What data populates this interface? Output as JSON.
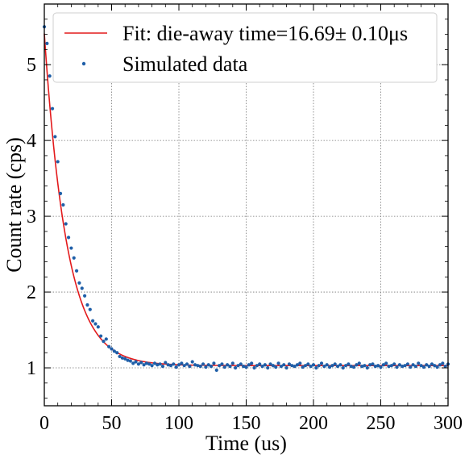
{
  "chart_data": {
    "type": "scatter",
    "xlabel": "Time (us)",
    "ylabel": "Count rate (cps)",
    "xlim": [
      0,
      300
    ],
    "ylim": [
      0.5,
      5.8
    ],
    "xticks": [
      0,
      50,
      100,
      150,
      200,
      250,
      300
    ],
    "yticks": [
      1,
      2,
      3,
      4,
      5
    ],
    "grid": true,
    "legend_position": "top-right",
    "legend": [
      "Fit: die-away time=16.69± 0.10μs",
      "Simulated data"
    ],
    "colors": {
      "fit": "#e31a1c",
      "data": "#1f5fa8"
    },
    "fit": {
      "amplitude": 4.38,
      "tau": 16.69,
      "offset": 1.03,
      "tau_uncertainty": 0.1
    },
    "series": [
      {
        "name": "Simulated data",
        "x": [
          0,
          2,
          4,
          6,
          8,
          10,
          12,
          14,
          16,
          18,
          20,
          22,
          24,
          26,
          28,
          30,
          32,
          34,
          36,
          38,
          40,
          42,
          44,
          46,
          48,
          50,
          52,
          54,
          56,
          58,
          60,
          62,
          64,
          66,
          68,
          70,
          72,
          74,
          76,
          78,
          80,
          82,
          84,
          86,
          88,
          90,
          92,
          94,
          96,
          98,
          100,
          102,
          104,
          106,
          108,
          110,
          112,
          114,
          116,
          118,
          120,
          122,
          124,
          126,
          128,
          130,
          132,
          134,
          136,
          138,
          140,
          142,
          144,
          146,
          148,
          150,
          152,
          154,
          156,
          158,
          160,
          162,
          164,
          166,
          168,
          170,
          172,
          174,
          176,
          178,
          180,
          182,
          184,
          186,
          188,
          190,
          192,
          194,
          196,
          198,
          200,
          202,
          204,
          206,
          208,
          210,
          212,
          214,
          216,
          218,
          220,
          222,
          224,
          226,
          228,
          230,
          232,
          234,
          236,
          238,
          240,
          242,
          244,
          246,
          248,
          250,
          252,
          254,
          256,
          258,
          260,
          262,
          264,
          266,
          268,
          270,
          272,
          274,
          276,
          278,
          280,
          282,
          284,
          286,
          288,
          290,
          292,
          294,
          296,
          298,
          300
        ],
        "y": [
          5.5,
          5.28,
          4.85,
          4.42,
          4.05,
          3.72,
          3.3,
          3.15,
          2.9,
          2.72,
          2.58,
          2.45,
          2.28,
          2.12,
          2.05,
          1.95,
          1.83,
          1.77,
          1.62,
          1.58,
          1.54,
          1.42,
          1.35,
          1.38,
          1.28,
          1.25,
          1.22,
          1.2,
          1.15,
          1.13,
          1.12,
          1.1,
          1.09,
          1.06,
          1.08,
          1.05,
          1.07,
          1.04,
          1.06,
          1.05,
          1.03,
          1.06,
          1.04,
          1.05,
          1.02,
          1.07,
          1.04,
          1.03,
          1.05,
          1.01,
          1.04,
          1.06,
          1.03,
          1.05,
          1.02,
          1.08,
          1.04,
          1.03,
          1.02,
          1.05,
          1.01,
          1.04,
          1.02,
          1.06,
          0.97,
          1.03,
          1.05,
          1.01,
          1.04,
          1.02,
          1.06,
          1,
          1.03,
          1.05,
          1.02,
          1.01,
          1.04,
          1.06,
          1,
          1.03,
          1.05,
          1.02,
          1.04,
          1,
          1.05,
          1.03,
          1.01,
          1.06,
          1.02,
          1.04,
          1,
          1.05,
          1.03,
          1.02,
          1.04,
          1.06,
          1.01,
          1.03,
          1.05,
          1.02,
          1.04,
          1,
          1.03,
          1.06,
          1.02,
          1.04,
          1.01,
          1.03,
          1.05,
          1.02,
          1.04,
          1,
          1.03,
          1.05,
          1.02,
          1.01,
          1.04,
          1.06,
          1.02,
          1.03,
          1,
          1.04,
          1.05,
          1.02,
          1.03,
          1.01,
          1.04,
          1.06,
          1.02,
          1.03,
          1.05,
          1.01,
          1.04,
          1.02,
          1.03,
          1.05,
          1.01,
          1.04,
          1.02,
          1.06,
          1.03,
          1.01,
          1.04,
          1.02,
          1.05,
          1.03,
          1.01,
          1.04,
          1.06,
          1.02,
          1.05
        ]
      }
    ]
  }
}
